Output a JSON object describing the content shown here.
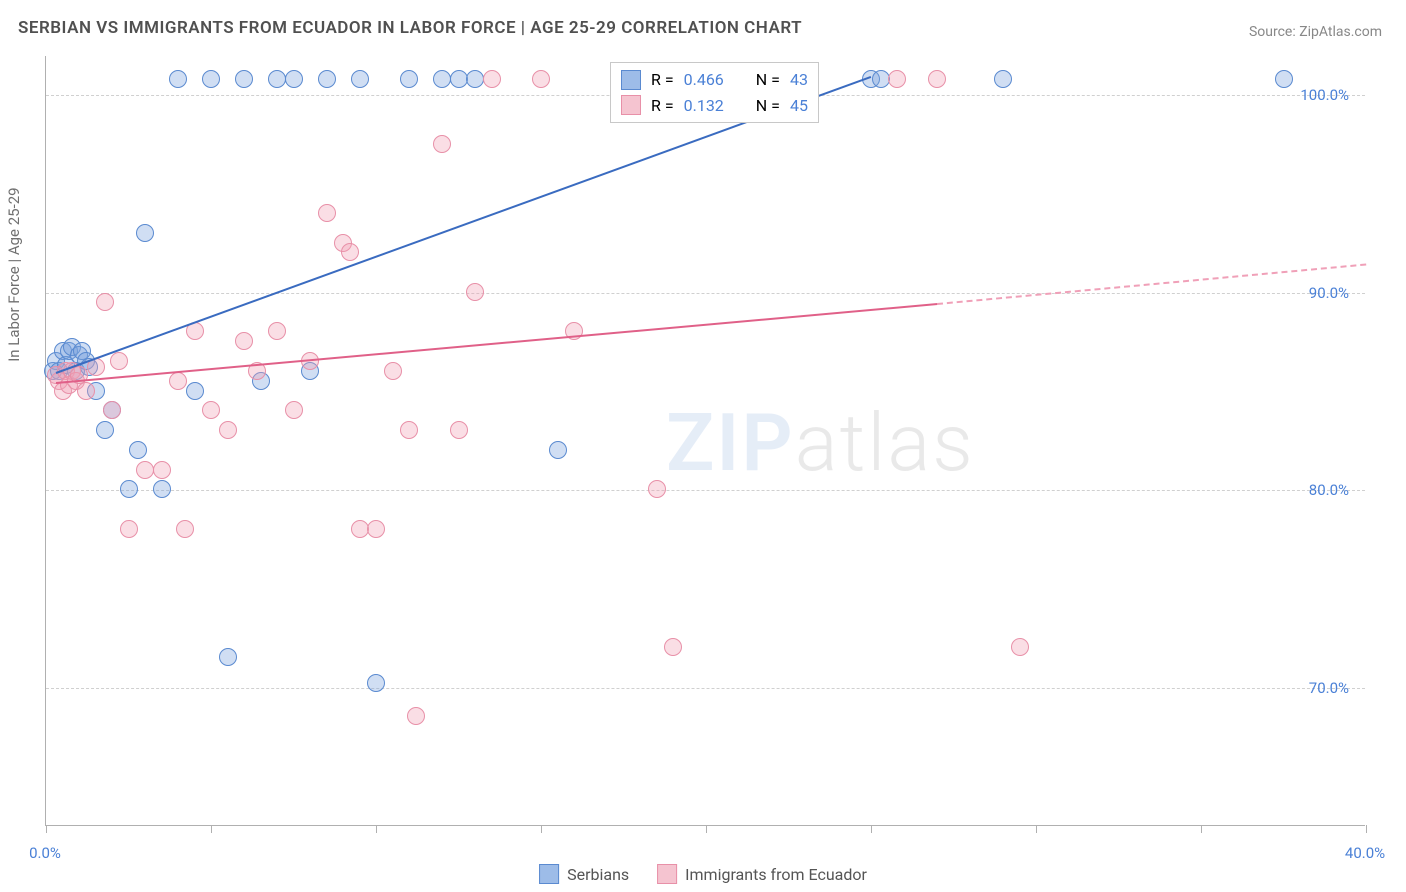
{
  "title": "SERBIAN VS IMMIGRANTS FROM ECUADOR IN LABOR FORCE | AGE 25-29 CORRELATION CHART",
  "source_label": "Source: ZipAtlas.com",
  "ylabel": "In Labor Force | Age 25-29",
  "watermark": {
    "zip": "ZIP",
    "atlas": "atlas"
  },
  "chart": {
    "type": "scatter-correlation",
    "xlim": [
      0,
      40
    ],
    "ylim": [
      63,
      102
    ],
    "xticks": [
      0,
      5,
      10,
      15,
      20,
      25,
      30,
      35,
      40
    ],
    "xtick_labels": {
      "0": "0.0%",
      "40": "40.0%"
    },
    "yticks": [
      70,
      80,
      90,
      100
    ],
    "ytick_labels": {
      "70": "70.0%",
      "80": "80.0%",
      "90": "90.0%",
      "100": "100.0%"
    },
    "grid_color": "#d0d0d0",
    "background_color": "#ffffff",
    "axis_color": "#b0b0b0",
    "label_color": "#707070",
    "tick_value_color": "#4a80d6",
    "marker_radius": 9,
    "marker_fill_opacity": 0.35,
    "line_width": 2.5,
    "series": [
      {
        "name": "Serbians",
        "color_fill": "#9dbce8",
        "color_stroke": "#5a8ad0",
        "R": "0.466",
        "N": "43",
        "regression": {
          "x1": 0.3,
          "y1": 86,
          "x2": 25,
          "y2": 101
        },
        "points": [
          [
            0.2,
            86
          ],
          [
            0.3,
            86.5
          ],
          [
            0.4,
            86
          ],
          [
            0.5,
            87
          ],
          [
            0.6,
            86.3
          ],
          [
            0.7,
            87
          ],
          [
            0.8,
            87.2
          ],
          [
            0.9,
            86
          ],
          [
            1.0,
            86.8
          ],
          [
            1.1,
            87
          ],
          [
            1.2,
            86.5
          ],
          [
            1.3,
            86.2
          ],
          [
            1.5,
            85
          ],
          [
            1.8,
            83
          ],
          [
            2.0,
            84
          ],
          [
            2.5,
            80
          ],
          [
            2.8,
            82
          ],
          [
            3.0,
            93
          ],
          [
            3.5,
            80
          ],
          [
            4.0,
            100.8
          ],
          [
            4.5,
            85
          ],
          [
            5.0,
            100.8
          ],
          [
            5.5,
            71.5
          ],
          [
            6.0,
            100.8
          ],
          [
            6.5,
            85.5
          ],
          [
            7.0,
            100.8
          ],
          [
            7.5,
            100.8
          ],
          [
            8.0,
            86
          ],
          [
            8.5,
            100.8
          ],
          [
            9.5,
            100.8
          ],
          [
            10.0,
            70.2
          ],
          [
            11.0,
            100.8
          ],
          [
            12.0,
            100.8
          ],
          [
            12.5,
            100.8
          ],
          [
            13.0,
            100.8
          ],
          [
            15.5,
            82
          ],
          [
            17.5,
            100.8
          ],
          [
            18.0,
            100.8
          ],
          [
            18.5,
            100.8
          ],
          [
            25.0,
            100.8
          ],
          [
            25.3,
            100.8
          ],
          [
            29.0,
            100.8
          ],
          [
            37.5,
            100.8
          ]
        ]
      },
      {
        "name": "Immigants from Ecuador",
        "legend_name": "Immigrants from Ecuador",
        "color_fill": "#f5c4d0",
        "color_stroke": "#e890a8",
        "R": "0.132",
        "N": "45",
        "regression": {
          "x1": 0.3,
          "y1": 85.5,
          "x2": 27,
          "y2": 89.5
        },
        "regression_dashed": {
          "x1": 27,
          "y1": 89.5,
          "x2": 40,
          "y2": 91.5
        },
        "points": [
          [
            0.3,
            85.8
          ],
          [
            0.4,
            85.5
          ],
          [
            0.5,
            85
          ],
          [
            0.6,
            86
          ],
          [
            0.7,
            85.3
          ],
          [
            0.8,
            86
          ],
          [
            0.9,
            85.5
          ],
          [
            1.0,
            85.8
          ],
          [
            1.2,
            85
          ],
          [
            1.5,
            86.2
          ],
          [
            1.8,
            89.5
          ],
          [
            2.0,
            84
          ],
          [
            2.2,
            86.5
          ],
          [
            2.5,
            78
          ],
          [
            3.0,
            81
          ],
          [
            3.5,
            81
          ],
          [
            4.0,
            85.5
          ],
          [
            4.2,
            78
          ],
          [
            4.5,
            88
          ],
          [
            5.0,
            84
          ],
          [
            5.5,
            83
          ],
          [
            6.0,
            87.5
          ],
          [
            6.4,
            86
          ],
          [
            7.0,
            88
          ],
          [
            7.5,
            84
          ],
          [
            8.0,
            86.5
          ],
          [
            8.5,
            94
          ],
          [
            9.0,
            92.5
          ],
          [
            9.2,
            92
          ],
          [
            9.5,
            78
          ],
          [
            10.0,
            78
          ],
          [
            10.5,
            86
          ],
          [
            11.0,
            83
          ],
          [
            11.2,
            68.5
          ],
          [
            12.0,
            97.5
          ],
          [
            12.5,
            83
          ],
          [
            13.0,
            90
          ],
          [
            13.5,
            100.8
          ],
          [
            15.0,
            100.8
          ],
          [
            16.0,
            88
          ],
          [
            18.5,
            80
          ],
          [
            19.0,
            72
          ],
          [
            25.8,
            100.8
          ],
          [
            27.0,
            100.8
          ],
          [
            29.5,
            72
          ]
        ]
      }
    ]
  },
  "stats_box": {
    "label_R": "R =",
    "label_N": "N ="
  },
  "legend": {
    "items": [
      "Serbians",
      "Immigrants from Ecuador"
    ]
  }
}
